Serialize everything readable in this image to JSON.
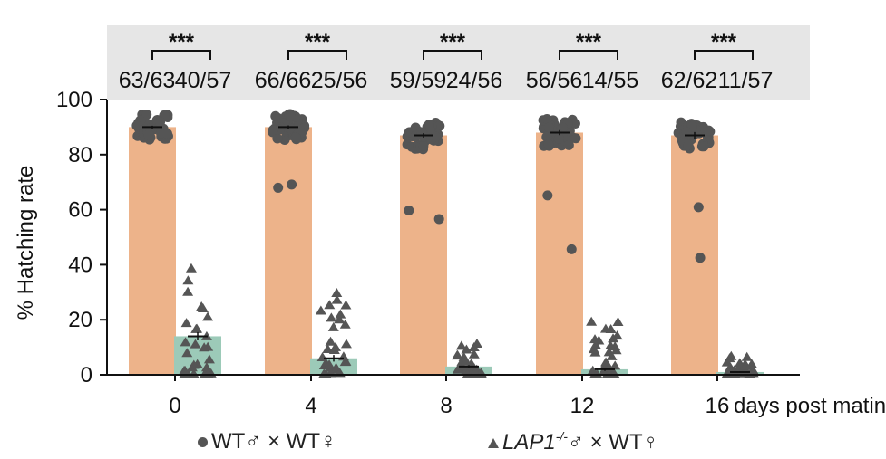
{
  "chart_data": {
    "type": "bar",
    "title": "",
    "xlabel": "days post mating",
    "ylabel": "% Hatching rate",
    "ylim": [
      0,
      100
    ],
    "yticks": [
      "0",
      "20",
      "40",
      "60",
      "80",
      "100"
    ],
    "categories": [
      "0",
      "4",
      "8",
      "12",
      "16"
    ],
    "significance": [
      "***",
      "***",
      "***",
      "***",
      "***"
    ],
    "series": [
      {
        "name": "WT♂ × WT♀",
        "color": "#edb38a",
        "point_color": "#555555",
        "marker": "circle",
        "values": [
          90,
          90,
          87,
          88,
          87
        ],
        "sem": [
          0.5,
          0.6,
          0.8,
          0.9,
          1.2
        ],
        "counts": [
          "63/63",
          "66/66",
          "59/59",
          "56/56",
          "62/62"
        ]
      },
      {
        "name": "LAP1-/-♂ × WT♀",
        "color": "#9ccab8",
        "point_color": "#555555",
        "marker": "triangle",
        "values": [
          14,
          6,
          3,
          2,
          1
        ],
        "sem": [
          1.5,
          1.2,
          0.5,
          0.6,
          0.3
        ],
        "counts": [
          "40/57",
          "25/56",
          "24/56",
          "14/55",
          "11/57"
        ]
      }
    ],
    "legend": {
      "placement": "bottom",
      "wt_label": "WT♂ × WT♀",
      "mut_gene": "LAP1",
      "mut_sup": "-/-",
      "mut_rest": "♂ × WT♀"
    }
  }
}
